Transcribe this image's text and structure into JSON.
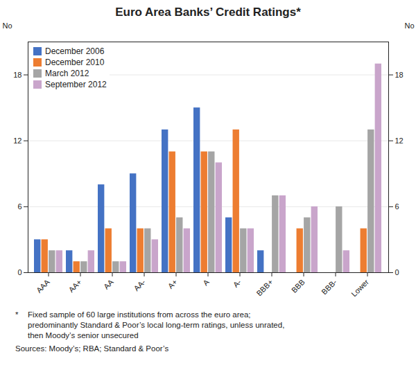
{
  "chart_data": {
    "type": "bar",
    "title": "Euro Area Banks’ Credit Ratings*",
    "categories": [
      "AAA",
      "AA+",
      "AA",
      "AA-",
      "A+",
      "A",
      "A-",
      "BBB+",
      "BBB",
      "BBB-",
      "Lower"
    ],
    "series": [
      {
        "name": "December 2006",
        "color": "#4472C4",
        "values": [
          3,
          2,
          8,
          9,
          13,
          15,
          5,
          2,
          0,
          0,
          0
        ]
      },
      {
        "name": "December 2010",
        "color": "#ED7D31",
        "values": [
          3,
          1,
          4,
          4,
          11,
          11,
          13,
          0,
          4,
          0,
          4
        ]
      },
      {
        "name": "March 2012",
        "color": "#A5A5A5",
        "values": [
          2,
          1,
          1,
          4,
          5,
          11,
          4,
          7,
          5,
          6,
          13
        ]
      },
      {
        "name": "September 2012",
        "color": "#C9A5CB",
        "values": [
          2,
          2,
          1,
          3,
          4,
          10,
          4,
          7,
          6,
          2,
          19
        ]
      }
    ],
    "ylabel": "No",
    "y2label": "No",
    "ylim": [
      0,
      21
    ],
    "yticks": [
      0,
      6,
      12,
      18
    ],
    "y2lim": [
      0,
      21
    ],
    "y2ticks": [
      0,
      6,
      12,
      18
    ],
    "grid": true,
    "legend": "upper left",
    "annotations": [
      "*",
      "Fixed sample of 60 large institutions from across the euro area;",
      "predominantly Standard & Poor’s local long-term ratings, unless unrated,",
      "then Moody’s senior unsecured",
      "Sources: Moody’s; RBA; Standard & Poor’s"
    ]
  }
}
